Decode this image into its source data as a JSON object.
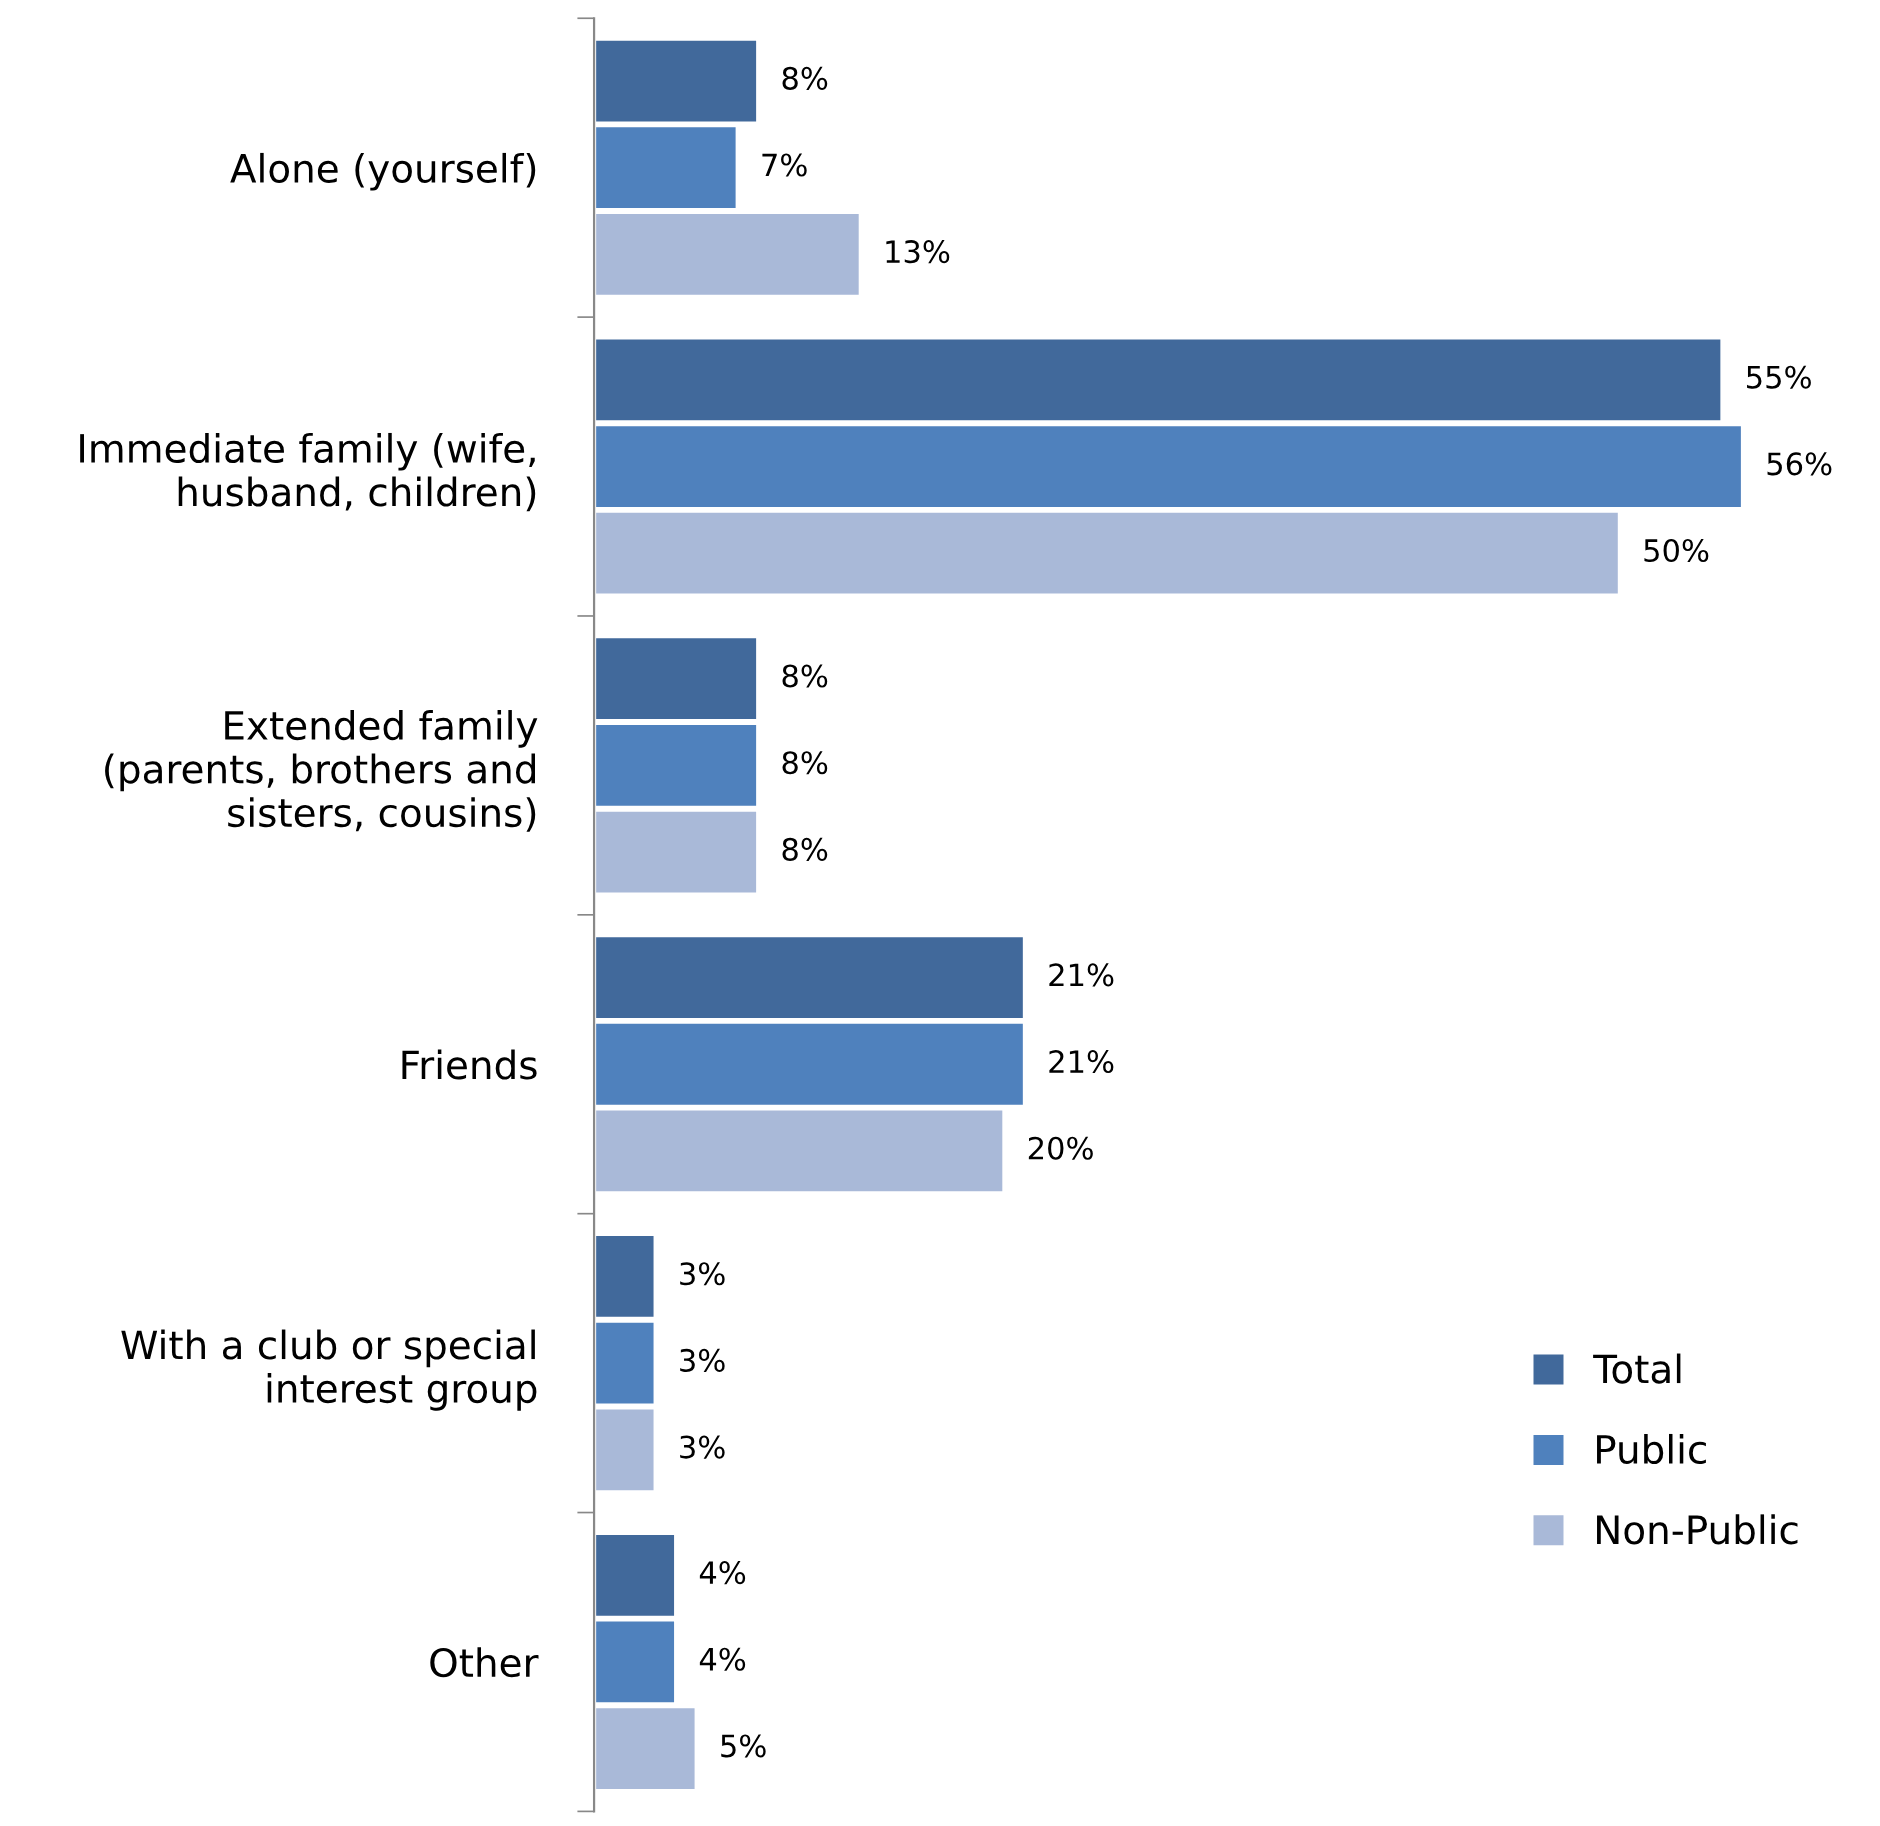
{
  "chart_data": {
    "type": "bar",
    "orientation": "horizontal",
    "categories": [
      "Alone (yourself)",
      "Immediate family (wife,\nhusband, children)",
      "Extended family\n(parents, brothers and\nsisters, cousins)",
      "Friends",
      "With a club or special\ninterest group",
      "Other"
    ],
    "series": [
      {
        "name": "Total",
        "color": "#41699b",
        "values": [
          8,
          55,
          8,
          21,
          3,
          4
        ],
        "value_labels": [
          "8%",
          "55%",
          "8%",
          "21%",
          "3%",
          "4%"
        ]
      },
      {
        "name": "Public",
        "color": "#4f81bd",
        "values": [
          7,
          56,
          8,
          21,
          3,
          4
        ],
        "value_labels": [
          "7%",
          "56%",
          "8%",
          "21%",
          "3%",
          "4%"
        ]
      },
      {
        "name": "Non-Public",
        "color": "#a9b9d8",
        "values": [
          13,
          50,
          8,
          20,
          3,
          5
        ],
        "value_labels": [
          "13%",
          "50%",
          "8%",
          "20%",
          "3%",
          "5%"
        ]
      }
    ],
    "tick_labels": "y",
    "legend": "right",
    "grid": false
  }
}
